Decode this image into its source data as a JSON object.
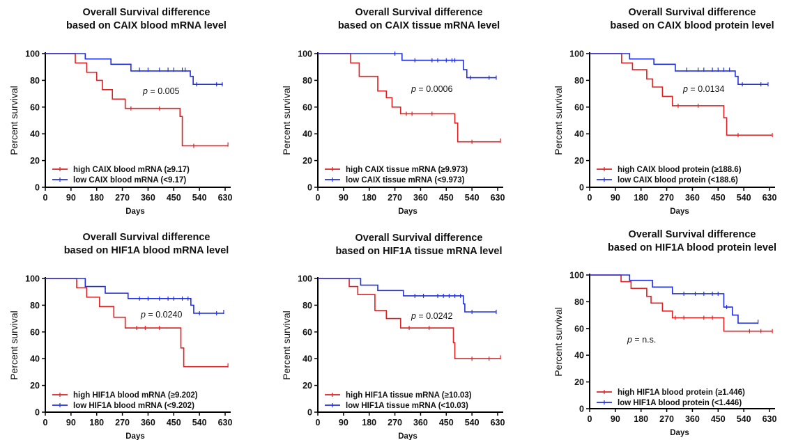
{
  "chart_data": [
    {
      "type": "line",
      "title_line1": "Overall Survival difference",
      "title_line2": "based on CAIX blood mRNA level",
      "xlabel": "Days",
      "ylabel": "Percent survival",
      "xlim": [
        0,
        630
      ],
      "ylim": [
        0,
        100
      ],
      "x_ticks": [
        0,
        90,
        180,
        270,
        360,
        450,
        540,
        630
      ],
      "y_ticks": [
        0,
        20,
        40,
        60,
        80,
        100
      ],
      "p_prefix": "p",
      "p_value": " = 0.005",
      "series": [
        {
          "name": "high CAIX blood mRNA (≥9.17)",
          "color": "#e02020",
          "steps": [
            [
              0,
              100
            ],
            [
              105,
              93
            ],
            [
              145,
              86
            ],
            [
              180,
              80
            ],
            [
              200,
              73
            ],
            [
              235,
              66
            ],
            [
              280,
              59
            ],
            [
              472,
              53
            ],
            [
              480,
              31
            ],
            [
              640,
              31
            ]
          ],
          "censored": [
            [
              300,
              59
            ],
            [
              400,
              59
            ],
            [
              520,
              31
            ],
            [
              640,
              32
            ]
          ]
        },
        {
          "name": "low CAIX blood mRNA (<9.17)",
          "color": "#1f2fe0",
          "steps": [
            [
              0,
              100
            ],
            [
              140,
              96
            ],
            [
              230,
              92
            ],
            [
              300,
              87
            ],
            [
              508,
              83
            ],
            [
              518,
              77
            ],
            [
              622,
              77
            ]
          ],
          "censored": [
            [
              330,
              88
            ],
            [
              360,
              88
            ],
            [
              400,
              88
            ],
            [
              430,
              88
            ],
            [
              450,
              88
            ],
            [
              480,
              88
            ],
            [
              490,
              88
            ],
            [
              530,
              77
            ],
            [
              600,
              77
            ],
            [
              620,
              77
            ]
          ]
        }
      ]
    },
    {
      "type": "line",
      "title_line1": "Overall Survival difference",
      "title_line2": "based on CAIX tissue mRNA level",
      "xlabel": "Days",
      "ylabel": "Percent survival",
      "xlim": [
        0,
        630
      ],
      "ylim": [
        0,
        100
      ],
      "x_ticks": [
        0,
        90,
        180,
        270,
        360,
        450,
        540,
        630
      ],
      "y_ticks": [
        0,
        20,
        40,
        60,
        80,
        100
      ],
      "p_prefix": "p",
      "p_value": " = 0.0006",
      "series": [
        {
          "name": "high CAIX tissue mRNA (≥9.973)",
          "color": "#e02020",
          "steps": [
            [
              0,
              100
            ],
            [
              115,
              93
            ],
            [
              145,
              83
            ],
            [
              210,
              72
            ],
            [
              240,
              67
            ],
            [
              260,
              60
            ],
            [
              290,
              55
            ],
            [
              480,
              48
            ],
            [
              490,
              34
            ],
            [
              640,
              34
            ]
          ],
          "censored": [
            [
              310,
              55
            ],
            [
              330,
              55
            ],
            [
              400,
              55
            ],
            [
              540,
              34
            ],
            [
              640,
              35
            ]
          ]
        },
        {
          "name": "low CAIX tissue mRNA (<9.973)",
          "color": "#1f2fe0",
          "steps": [
            [
              0,
              100
            ],
            [
              295,
              95
            ],
            [
              510,
              88
            ],
            [
              522,
              82
            ],
            [
              625,
              82
            ]
          ],
          "censored": [
            [
              270,
              100
            ],
            [
              340,
              95
            ],
            [
              400,
              95
            ],
            [
              420,
              95
            ],
            [
              450,
              95
            ],
            [
              470,
              95
            ],
            [
              480,
              95
            ],
            [
              535,
              82
            ],
            [
              600,
              82
            ],
            [
              625,
              82
            ]
          ]
        }
      ]
    },
    {
      "type": "line",
      "title_line1": "Overall Survival difference",
      "title_line2": "based on CAIX blood protein level",
      "xlabel": "Days",
      "ylabel": "Percent survival",
      "xlim": [
        0,
        630
      ],
      "ylim": [
        0,
        100
      ],
      "x_ticks": [
        0,
        90,
        180,
        270,
        360,
        450,
        540,
        630
      ],
      "y_ticks": [
        0,
        20,
        40,
        60,
        80,
        100
      ],
      "p_prefix": "p",
      "p_value": " = 0.0134",
      "series": [
        {
          "name": "high CAIX blood protein (≥188.6)",
          "color": "#e02020",
          "steps": [
            [
              0,
              100
            ],
            [
              112,
              93
            ],
            [
              150,
              88
            ],
            [
              200,
              81
            ],
            [
              220,
              75
            ],
            [
              255,
              68
            ],
            [
              290,
              61
            ],
            [
              470,
              52
            ],
            [
              480,
              39
            ],
            [
              640,
              39
            ]
          ],
          "censored": [
            [
              310,
              61
            ],
            [
              380,
              61
            ],
            [
              520,
              39
            ],
            [
              640,
              39
            ]
          ]
        },
        {
          "name": "low CAIX blood protein (<188.6)",
          "color": "#1f2fe0",
          "steps": [
            [
              0,
              100
            ],
            [
              140,
              96
            ],
            [
              225,
              92
            ],
            [
              300,
              87
            ],
            [
              510,
              83
            ],
            [
              520,
              77
            ],
            [
              625,
              77
            ]
          ],
          "censored": [
            [
              340,
              88
            ],
            [
              380,
              88
            ],
            [
              400,
              88
            ],
            [
              430,
              88
            ],
            [
              450,
              88
            ],
            [
              470,
              88
            ],
            [
              490,
              88
            ],
            [
              535,
              77
            ],
            [
              600,
              77
            ],
            [
              625,
              77
            ]
          ]
        }
      ]
    },
    {
      "type": "line",
      "title_line1": "Overall Survival difference",
      "title_line2": "based on HIF1A blood mRNA level",
      "xlabel": "Days",
      "ylabel": "Percent survival",
      "xlim": [
        0,
        630
      ],
      "ylim": [
        0,
        100
      ],
      "x_ticks": [
        0,
        90,
        180,
        270,
        360,
        450,
        540,
        630
      ],
      "y_ticks": [
        0,
        20,
        40,
        60,
        80,
        100
      ],
      "p_prefix": "p",
      "p_value": " = 0.0240",
      "series": [
        {
          "name": "high HIF1A blood mRNA (≥9.202)",
          "color": "#e02020",
          "steps": [
            [
              0,
              100
            ],
            [
              110,
              93
            ],
            [
              145,
              86
            ],
            [
              190,
              79
            ],
            [
              240,
              71
            ],
            [
              280,
              63
            ],
            [
              475,
              48
            ],
            [
              485,
              34
            ],
            [
              640,
              34
            ]
          ],
          "censored": [
            [
              320,
              63
            ],
            [
              350,
              63
            ],
            [
              400,
              63
            ],
            [
              640,
              35
            ]
          ]
        },
        {
          "name": "low HIF1A blood mRNA (<9.202)",
          "color": "#1f2fe0",
          "steps": [
            [
              0,
              100
            ],
            [
              140,
              94
            ],
            [
              210,
              89
            ],
            [
              290,
              85
            ],
            [
              510,
              80
            ],
            [
              520,
              74
            ],
            [
              625,
              74
            ]
          ],
          "censored": [
            [
              330,
              85
            ],
            [
              360,
              85
            ],
            [
              400,
              85
            ],
            [
              430,
              85
            ],
            [
              450,
              85
            ],
            [
              480,
              85
            ],
            [
              500,
              85
            ],
            [
              540,
              74
            ],
            [
              600,
              74
            ],
            [
              625,
              75
            ]
          ]
        }
      ]
    },
    {
      "type": "line",
      "title_line1": "Overall Survival difference",
      "title_line2": "based on HIF1A tissue mRNA level",
      "xlabel": "Days",
      "ylabel": "Percent survival",
      "xlim": [
        0,
        630
      ],
      "ylim": [
        0,
        100
      ],
      "x_ticks": [
        0,
        90,
        180,
        270,
        360,
        450,
        540,
        630
      ],
      "y_ticks": [
        0,
        20,
        40,
        60,
        80,
        100
      ],
      "p_prefix": "p",
      "p_value": " = 0.0242",
      "series": [
        {
          "name": "high HIF1A tissue mRNA (≥10.03)",
          "color": "#e02020",
          "steps": [
            [
              0,
              100
            ],
            [
              110,
              94
            ],
            [
              140,
              88
            ],
            [
              200,
              76
            ],
            [
              240,
              70
            ],
            [
              290,
              63
            ],
            [
              475,
              52
            ],
            [
              480,
              40
            ],
            [
              640,
              40
            ]
          ],
          "censored": [
            [
              320,
              63
            ],
            [
              390,
              63
            ],
            [
              540,
              40
            ],
            [
              600,
              40
            ],
            [
              640,
              41
            ]
          ]
        },
        {
          "name": "low HIF1A tissue mRNA (<10.03)",
          "color": "#1f2fe0",
          "steps": [
            [
              0,
              100
            ],
            [
              150,
              95
            ],
            [
              210,
              91
            ],
            [
              300,
              87
            ],
            [
              510,
              81
            ],
            [
              515,
              75
            ],
            [
              625,
              75
            ]
          ],
          "censored": [
            [
              340,
              87
            ],
            [
              370,
              87
            ],
            [
              420,
              87
            ],
            [
              440,
              87
            ],
            [
              460,
              87
            ],
            [
              480,
              87
            ],
            [
              500,
              87
            ],
            [
              540,
              75
            ],
            [
              625,
              75
            ]
          ]
        }
      ]
    },
    {
      "type": "line",
      "title_line1": "Overall Survival difference",
      "title_line2": "based on HIF1A blood protein level",
      "xlabel": "Days",
      "ylabel": "Percent survival",
      "xlim": [
        0,
        630
      ],
      "ylim": [
        0,
        100
      ],
      "x_ticks": [
        0,
        90,
        180,
        270,
        360,
        450,
        540,
        630
      ],
      "y_ticks": [
        0,
        20,
        40,
        60,
        80,
        100
      ],
      "p_prefix": "p",
      "p_value": " = n.s.",
      "series": [
        {
          "name": "high HIF1A blood protein (≥1.446)",
          "color": "#e02020",
          "steps": [
            [
              0,
              100
            ],
            [
              110,
              95
            ],
            [
              145,
              90
            ],
            [
              200,
              84
            ],
            [
              215,
              79
            ],
            [
              255,
              73
            ],
            [
              290,
              68
            ],
            [
              470,
              58
            ],
            [
              640,
              58
            ]
          ],
          "censored": [
            [
              300,
              68
            ],
            [
              330,
              68
            ],
            [
              400,
              68
            ],
            [
              430,
              68
            ],
            [
              560,
              58
            ],
            [
              600,
              58
            ],
            [
              640,
              58
            ]
          ]
        },
        {
          "name": "low HIF1A blood protein (<1.446)",
          "color": "#1f2fe0",
          "steps": [
            [
              0,
              100
            ],
            [
              140,
              96
            ],
            [
              220,
              91
            ],
            [
              290,
              86
            ],
            [
              470,
              76
            ],
            [
              500,
              70
            ],
            [
              520,
              64
            ],
            [
              590,
              64
            ]
          ],
          "censored": [
            [
              330,
              86
            ],
            [
              370,
              86
            ],
            [
              400,
              86
            ],
            [
              430,
              86
            ],
            [
              450,
              86
            ],
            [
              480,
              76
            ],
            [
              590,
              65
            ]
          ]
        }
      ]
    }
  ]
}
